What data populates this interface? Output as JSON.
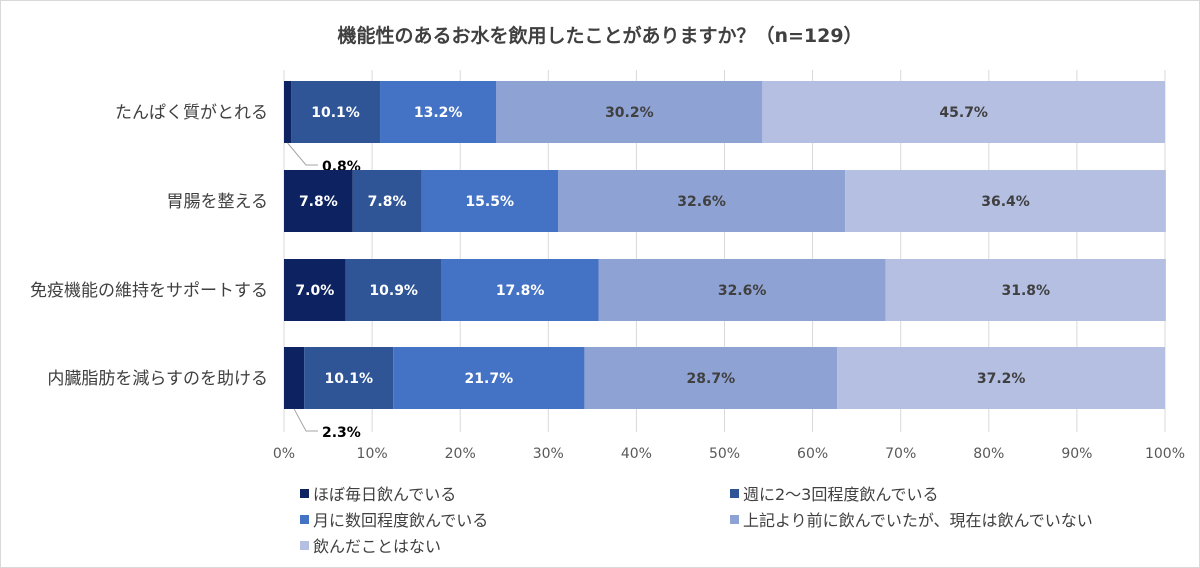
{
  "chart_data": {
    "type": "bar",
    "orientation": "horizontal",
    "stacked": true,
    "title": "機能性のあるお水を飲用したことがありますか？（n=129）",
    "categories": [
      "たんぱく質がとれる",
      "胃腸を整える",
      "免疫機能の維持をサポートする",
      "内臓脂肪を減らすのを助ける"
    ],
    "series": [
      {
        "name": "ほぼ毎日飲んでいる",
        "color": "#0d2260",
        "values": [
          0.8,
          7.8,
          7.0,
          2.3
        ],
        "labels": [
          "0.8%",
          "7.8%",
          "7.0%",
          "2.3%"
        ]
      },
      {
        "name": "週に2～3回程度飲んでいる",
        "color": "#2f5597",
        "values": [
          10.1,
          7.8,
          10.9,
          10.1
        ],
        "labels": [
          "10.1%",
          "7.8%",
          "10.9%",
          "10.1%"
        ]
      },
      {
        "name": "月に数回程度飲んでいる",
        "color": "#4472c4",
        "values": [
          13.2,
          15.5,
          17.8,
          21.7
        ],
        "labels": [
          "13.2%",
          "15.5%",
          "17.8%",
          "21.7%"
        ]
      },
      {
        "name": "上記より前に飲んでいたが、現在は飲んでいない",
        "color": "#8fa2d4",
        "values": [
          30.2,
          32.6,
          32.6,
          28.7
        ],
        "labels": [
          "30.2%",
          "32.6%",
          "32.6%",
          "28.7%"
        ]
      },
      {
        "name": "飲んだことはない",
        "color": "#b4bfe2",
        "values": [
          45.7,
          36.4,
          31.8,
          37.2
        ],
        "labels": [
          "45.7%",
          "36.4%",
          "31.8%",
          "37.2%"
        ]
      }
    ],
    "xlim": [
      0,
      100
    ],
    "xticks": [
      "0%",
      "10%",
      "20%",
      "30%",
      "40%",
      "50%",
      "60%",
      "70%",
      "80%",
      "90%",
      "100%"
    ],
    "grid": true,
    "legend": "bottom"
  }
}
